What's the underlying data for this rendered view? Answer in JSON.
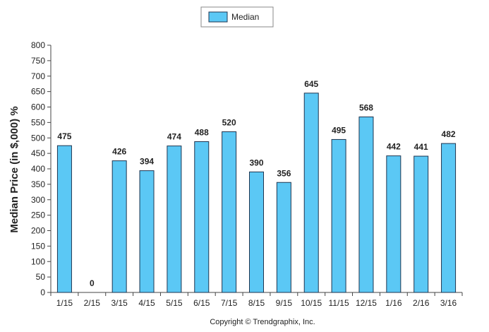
{
  "chart_data": {
    "type": "bar",
    "title": "",
    "xlabel": "",
    "ylabel": "Median Price (in $,000) %",
    "ylim": [
      0,
      800
    ],
    "yticks": [
      0,
      50,
      100,
      150,
      200,
      250,
      300,
      350,
      400,
      450,
      500,
      550,
      600,
      650,
      700,
      750,
      800
    ],
    "grid": false,
    "legend_position": "top-center",
    "categories": [
      "1/15",
      "2/15",
      "3/15",
      "4/15",
      "5/15",
      "6/15",
      "7/15",
      "8/15",
      "9/15",
      "10/15",
      "11/15",
      "12/15",
      "1/16",
      "2/16",
      "3/16"
    ],
    "series": [
      {
        "name": "Median",
        "color": "#5bc8f5",
        "values": [
          475,
          0,
          426,
          394,
          474,
          488,
          520,
          390,
          356,
          645,
          495,
          568,
          442,
          441,
          482
        ]
      }
    ],
    "data_labels": [
      "475",
      "0",
      "426",
      "394",
      "474",
      "488",
      "520",
      "390",
      "356",
      "645",
      "495",
      "568",
      "442",
      "441",
      "482"
    ]
  },
  "footer": {
    "copyright": "Copyright © Trendgraphix, Inc."
  }
}
